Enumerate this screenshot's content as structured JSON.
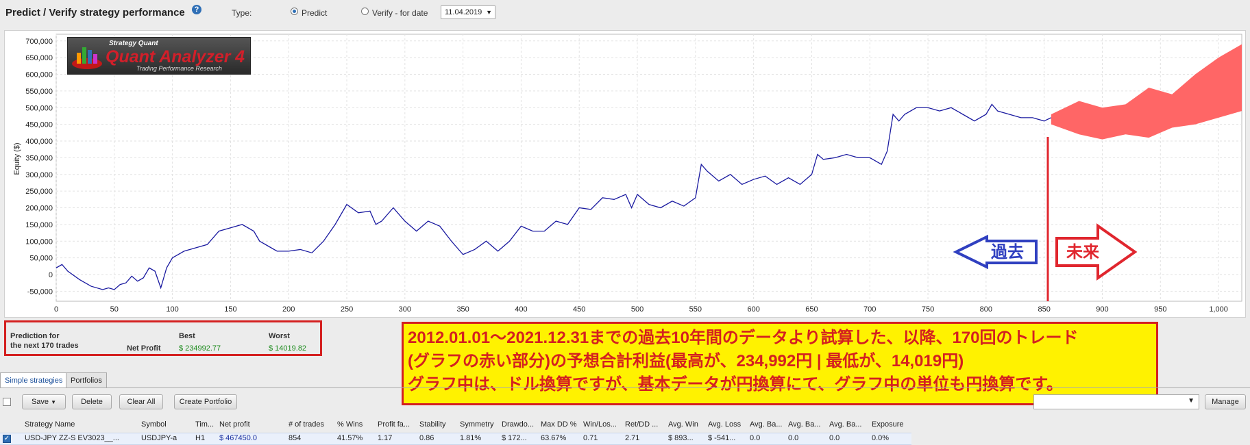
{
  "header": {
    "title": "Predict / Verify strategy performance",
    "help_icon": "question-icon",
    "type_label": "Type:",
    "predict_label": "Predict",
    "verify_label": "Verify - for date",
    "date_value": "11.04.2019"
  },
  "logo": {
    "top": "Strategy Quant",
    "main": "Quant Analyzer",
    "version": "4",
    "tagline": "Trading Performance     Research"
  },
  "chart_data": {
    "type": "line",
    "ylabel": "Equity ($)",
    "xlabel": "",
    "xlim": [
      0,
      1020
    ],
    "ylim": [
      -80000,
      720000
    ],
    "x_ticks": [
      "0",
      "50",
      "100",
      "150",
      "200",
      "250",
      "300",
      "350",
      "400",
      "450",
      "500",
      "550",
      "600",
      "650",
      "700",
      "750",
      "800",
      "850",
      "900",
      "950",
      "1,000"
    ],
    "y_ticks": [
      "700,000",
      "650,000",
      "600,000",
      "550,000",
      "500,000",
      "450,000",
      "400,000",
      "350,000",
      "300,000",
      "250,000",
      "200,000",
      "150,000",
      "100,000",
      "50,000",
      "0",
      "-50,000"
    ],
    "grid": true,
    "series": [
      {
        "color": "#1a1aa0",
        "x": [
          0,
          5,
          10,
          20,
          30,
          40,
          45,
          50,
          55,
          60,
          65,
          70,
          75,
          80,
          85,
          90,
          95,
          100,
          110,
          120,
          130,
          140,
          150,
          160,
          170,
          175,
          180,
          185,
          190,
          200,
          210,
          220,
          230,
          240,
          250,
          260,
          270,
          275,
          280,
          290,
          300,
          310,
          320,
          330,
          340,
          350,
          360,
          370,
          380,
          390,
          400,
          410,
          420,
          430,
          440,
          450,
          460,
          470,
          480,
          490,
          495,
          500,
          510,
          520,
          530,
          540,
          550,
          555,
          560,
          570,
          580,
          590,
          600,
          610,
          620,
          630,
          640,
          650,
          655,
          660,
          670,
          680,
          690,
          700,
          710,
          715,
          720,
          725,
          730,
          740,
          750,
          760,
          770,
          780,
          790,
          800,
          805,
          810,
          820,
          830,
          840,
          850,
          856
        ],
        "y": [
          20000,
          30000,
          10000,
          -15000,
          -35000,
          -45000,
          -40000,
          -45000,
          -30000,
          -25000,
          -5000,
          -20000,
          -10000,
          20000,
          10000,
          -40000,
          20000,
          50000,
          70000,
          80000,
          90000,
          130000,
          140000,
          150000,
          130000,
          100000,
          90000,
          80000,
          70000,
          70000,
          75000,
          65000,
          100000,
          150000,
          210000,
          185000,
          190000,
          150000,
          160000,
          200000,
          160000,
          130000,
          160000,
          145000,
          100000,
          60000,
          75000,
          100000,
          70000,
          100000,
          145000,
          130000,
          130000,
          160000,
          150000,
          200000,
          195000,
          230000,
          225000,
          240000,
          200000,
          240000,
          210000,
          200000,
          220000,
          205000,
          230000,
          330000,
          310000,
          280000,
          300000,
          270000,
          285000,
          295000,
          270000,
          290000,
          270000,
          300000,
          360000,
          345000,
          350000,
          360000,
          350000,
          350000,
          330000,
          370000,
          480000,
          460000,
          480000,
          500000,
          500000,
          490000,
          500000,
          480000,
          460000,
          480000,
          510000,
          490000,
          480000,
          470000,
          470000,
          460000,
          470000
        ]
      }
    ],
    "forecast_band": {
      "color": "#ff6666",
      "x": [
        856,
        880,
        900,
        920,
        940,
        960,
        980,
        1000,
        1020
      ],
      "upper": [
        480000,
        520000,
        500000,
        510000,
        560000,
        540000,
        600000,
        650000,
        690000
      ],
      "lower": [
        450000,
        420000,
        405000,
        420000,
        410000,
        440000,
        450000,
        470000,
        490000
      ]
    }
  },
  "annotations": {
    "past": "過去",
    "future": "未来"
  },
  "prediction": {
    "label_line1": "Prediction for",
    "label_line2": "the next 170 trades",
    "best_header": "Best",
    "worst_header": "Worst",
    "net_profit_label": "Net Profit",
    "best_value": "$ 234992.77",
    "worst_value": "$ 14019.82"
  },
  "note": {
    "line1": "2012.01.01～2021.12.31までの過去10年間のデータより試算した、以降、170回のトレード",
    "line2": "(グラフの赤い部分)の予想合計利益(最高が、234,992円 | 最低が、14,019円)",
    "line3": "グラフ中は、ドル換算ですが、基本データが円換算にて、グラフ中の単位も円換算です。"
  },
  "tabs": [
    "Simple strategies",
    "Portfolios"
  ],
  "toolbar": {
    "save": "Save",
    "delete": "Delete",
    "clear_all": "Clear All",
    "create_portfolio": "Create Portfolio",
    "manage": "Manage"
  },
  "table": {
    "headers": [
      "Strategy Name",
      "Symbol",
      "Tim...",
      "Net profit",
      "# of trades",
      "% Wins",
      "Profit fa...",
      "Stability",
      "Symmetry",
      "Drawdo...",
      "Max DD %",
      "Win/Los...",
      "Ret/DD ...",
      "Avg. Win",
      "Avg. Loss",
      "Avg. Ba...",
      "Avg. Ba...",
      "Avg. Ba...",
      "Exposure"
    ],
    "row": [
      "USD-JPY   ZZ-S   EV3023__...",
      "USDJPY-a",
      "H1",
      "$ 467450.0",
      "854",
      "41.57%",
      "1.17",
      "0.86",
      "1.81%",
      "$ 172...",
      "63.67%",
      "0.71",
      "2.71",
      "$ 893...",
      "$ -541...",
      "0.0",
      "0.0",
      "0.0",
      "0.0%"
    ]
  }
}
